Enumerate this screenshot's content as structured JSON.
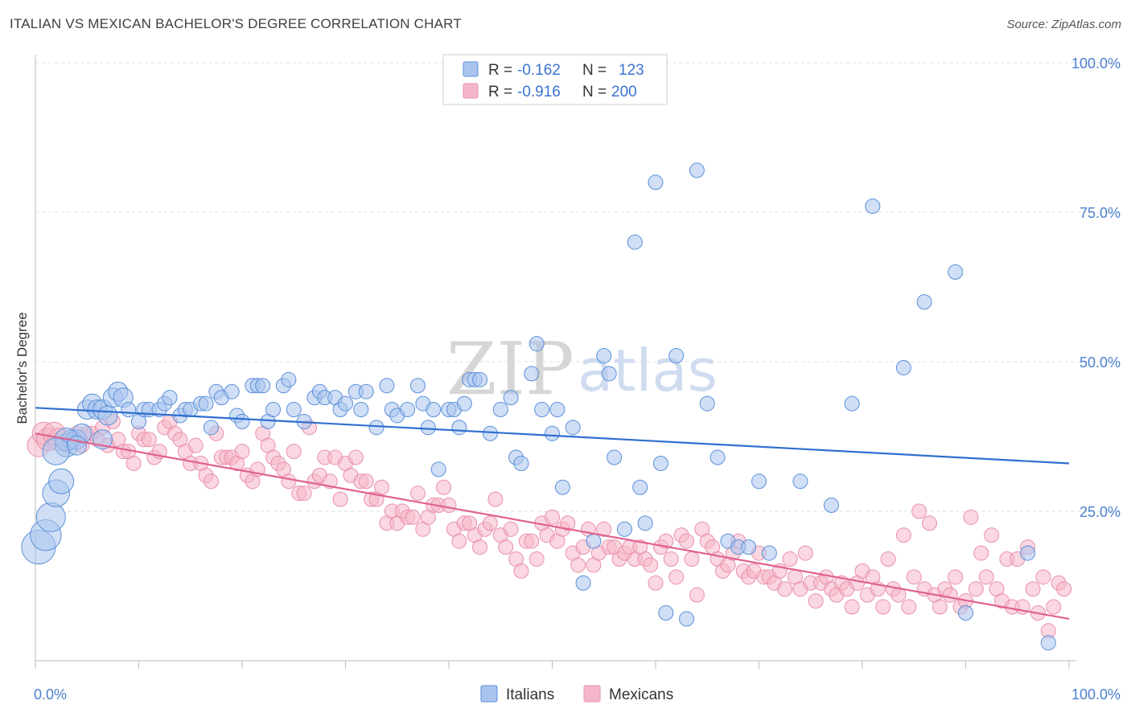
{
  "title": "ITALIAN VS MEXICAN BACHELOR'S DEGREE CORRELATION CHART",
  "source": "Source: ZipAtlas.com",
  "watermark": {
    "zip": "ZIP",
    "atlas": "atlas"
  },
  "colors": {
    "italians_fill": "#a9c5ee",
    "italians_stroke": "#5b8fd8",
    "italians_line": "#2f6fd0",
    "mexicans_fill": "#f6b6c9",
    "mexicans_stroke": "#e890ab",
    "mexicans_line": "#e0628e",
    "grid": "#dddddd",
    "axis_text": "#4a7fd0"
  },
  "legend": {
    "rows": [
      {
        "r_label": "R =",
        "r_value": "-0.162",
        "n_label": "N =",
        "n_value": "123"
      },
      {
        "r_label": "R =",
        "r_value": "-0.916",
        "n_label": "N =",
        "n_value": "200"
      }
    ]
  },
  "bottom_legend": [
    "Italians",
    "Mexicans"
  ],
  "chart_data": {
    "type": "scatter",
    "title": "ITALIAN VS MEXICAN BACHELOR'S DEGREE CORRELATION CHART",
    "xlabel": "",
    "ylabel": "Bachelor's Degree",
    "x_ticks": [
      "0.0%",
      "100.0%"
    ],
    "y_ticks": [
      "100.0%",
      "75.0%",
      "50.0%",
      "25.0%"
    ],
    "xlim": [
      0,
      100
    ],
    "ylim": [
      0,
      102
    ],
    "grid": "horizontal dashed",
    "legend_position": "top-center",
    "series": [
      {
        "name": "Italians",
        "trend": {
          "x": [
            0,
            100
          ],
          "y": [
            42.3,
            33.0
          ]
        },
        "points": [
          [
            0.3,
            19
          ],
          [
            1,
            21
          ],
          [
            1.5,
            24
          ],
          [
            2,
            28
          ],
          [
            2.5,
            30
          ],
          [
            3,
            36
          ],
          [
            3.5,
            37
          ],
          [
            4,
            37
          ],
          [
            4.5,
            38
          ],
          [
            5,
            42
          ],
          [
            5.5,
            43
          ],
          [
            6,
            42
          ],
          [
            6.5,
            42
          ],
          [
            7,
            41
          ],
          [
            7.5,
            44
          ],
          [
            8,
            45
          ],
          [
            8.5,
            44
          ],
          [
            9,
            42
          ],
          [
            10,
            40
          ],
          [
            10.5,
            42
          ],
          [
            11,
            42
          ],
          [
            12,
            42
          ],
          [
            12.5,
            43
          ],
          [
            13,
            44
          ],
          [
            14,
            41
          ],
          [
            14.5,
            42
          ],
          [
            15,
            42
          ],
          [
            16,
            43
          ],
          [
            16.5,
            43
          ],
          [
            17,
            39
          ],
          [
            17.5,
            45
          ],
          [
            18,
            44
          ],
          [
            19,
            45
          ],
          [
            19.5,
            41
          ],
          [
            20,
            40
          ],
          [
            21,
            46
          ],
          [
            21.5,
            46
          ],
          [
            22,
            46
          ],
          [
            22.5,
            40
          ],
          [
            23,
            42
          ],
          [
            24,
            46
          ],
          [
            24.5,
            47
          ],
          [
            25,
            42
          ],
          [
            26,
            40
          ],
          [
            27,
            44
          ],
          [
            27.5,
            45
          ],
          [
            28,
            44
          ],
          [
            29,
            44
          ],
          [
            29.5,
            42
          ],
          [
            30,
            43
          ],
          [
            31,
            45
          ],
          [
            31.5,
            42
          ],
          [
            32,
            45
          ],
          [
            33,
            39
          ],
          [
            34,
            46
          ],
          [
            34.5,
            42
          ],
          [
            35,
            41
          ],
          [
            36,
            42
          ],
          [
            37,
            46
          ],
          [
            37.5,
            43
          ],
          [
            38,
            39
          ],
          [
            38.5,
            42
          ],
          [
            39,
            32
          ],
          [
            40,
            42
          ],
          [
            40.5,
            42
          ],
          [
            41,
            39
          ],
          [
            41.5,
            43
          ],
          [
            42,
            47
          ],
          [
            42.5,
            47
          ],
          [
            43,
            47
          ],
          [
            44,
            38
          ],
          [
            45,
            42
          ],
          [
            46,
            44
          ],
          [
            46.5,
            34
          ],
          [
            47,
            33
          ],
          [
            48,
            48
          ],
          [
            48.5,
            53
          ],
          [
            49,
            42
          ],
          [
            50,
            38
          ],
          [
            50.5,
            42
          ],
          [
            51,
            29
          ],
          [
            52,
            39
          ],
          [
            53,
            13
          ],
          [
            54,
            20
          ],
          [
            55,
            51
          ],
          [
            55.5,
            48
          ],
          [
            56,
            34
          ],
          [
            57,
            22
          ],
          [
            58,
            70
          ],
          [
            58.5,
            29
          ],
          [
            59,
            23
          ],
          [
            60,
            80
          ],
          [
            60.5,
            33
          ],
          [
            61,
            8
          ],
          [
            62,
            51
          ],
          [
            63,
            7
          ],
          [
            64,
            82
          ],
          [
            65,
            43
          ],
          [
            66,
            34
          ],
          [
            67,
            20
          ],
          [
            68,
            19
          ],
          [
            69,
            19
          ],
          [
            70,
            30
          ],
          [
            71,
            18
          ],
          [
            74,
            30
          ],
          [
            77,
            26
          ],
          [
            79,
            43
          ],
          [
            81,
            76
          ],
          [
            84,
            49
          ],
          [
            86,
            60
          ],
          [
            89,
            65
          ],
          [
            90,
            8
          ],
          [
            96,
            18
          ],
          [
            98,
            3
          ],
          [
            6.5,
            37
          ],
          [
            3,
            37
          ],
          [
            2,
            35
          ],
          [
            4,
            36
          ]
        ]
      },
      {
        "name": "Mexicans",
        "trend": {
          "x": [
            0,
            100
          ],
          "y": [
            38.0,
            7.0
          ]
        },
        "points": [
          [
            0.3,
            36
          ],
          [
            0.8,
            38
          ],
          [
            1.2,
            37
          ],
          [
            1.8,
            38
          ],
          [
            2.3,
            37
          ],
          [
            3,
            36
          ],
          [
            3.5,
            37
          ],
          [
            4,
            38
          ],
          [
            4.5,
            36
          ],
          [
            5,
            38
          ],
          [
            5.5,
            38
          ],
          [
            6,
            37
          ],
          [
            6.5,
            39
          ],
          [
            7,
            36
          ],
          [
            7.5,
            40
          ],
          [
            8,
            37
          ],
          [
            8.5,
            35
          ],
          [
            9,
            35
          ],
          [
            9.5,
            33
          ],
          [
            10,
            38
          ],
          [
            10.5,
            37
          ],
          [
            11,
            37
          ],
          [
            11.5,
            34
          ],
          [
            12,
            35
          ],
          [
            12.5,
            39
          ],
          [
            13,
            40
          ],
          [
            13.5,
            38
          ],
          [
            14,
            37
          ],
          [
            14.5,
            35
          ],
          [
            15,
            33
          ],
          [
            15.5,
            36
          ],
          [
            16,
            33
          ],
          [
            16.5,
            31
          ],
          [
            17,
            30
          ],
          [
            17.5,
            38
          ],
          [
            18,
            34
          ],
          [
            18.5,
            34
          ],
          [
            19,
            34
          ],
          [
            19.5,
            33
          ],
          [
            20,
            35
          ],
          [
            20.5,
            31
          ],
          [
            21,
            30
          ],
          [
            21.5,
            32
          ],
          [
            22,
            38
          ],
          [
            22.5,
            36
          ],
          [
            23,
            34
          ],
          [
            23.5,
            33
          ],
          [
            24,
            32
          ],
          [
            24.5,
            30
          ],
          [
            25,
            35
          ],
          [
            25.5,
            28
          ],
          [
            26,
            28
          ],
          [
            26.5,
            39
          ],
          [
            27,
            30
          ],
          [
            27.5,
            31
          ],
          [
            28,
            34
          ],
          [
            28.5,
            30
          ],
          [
            29,
            34
          ],
          [
            29.5,
            27
          ],
          [
            30,
            33
          ],
          [
            30.5,
            31
          ],
          [
            31,
            34
          ],
          [
            31.5,
            30
          ],
          [
            32,
            30
          ],
          [
            32.5,
            27
          ],
          [
            33,
            27
          ],
          [
            33.5,
            29
          ],
          [
            34,
            23
          ],
          [
            34.5,
            25
          ],
          [
            35,
            23
          ],
          [
            35.5,
            25
          ],
          [
            36,
            24
          ],
          [
            36.5,
            24
          ],
          [
            37,
            28
          ],
          [
            37.5,
            22
          ],
          [
            38,
            24
          ],
          [
            38.5,
            26
          ],
          [
            39,
            26
          ],
          [
            39.5,
            29
          ],
          [
            40,
            26
          ],
          [
            40.5,
            22
          ],
          [
            41,
            20
          ],
          [
            41.5,
            23
          ],
          [
            42,
            23
          ],
          [
            42.5,
            21
          ],
          [
            43,
            19
          ],
          [
            43.5,
            22
          ],
          [
            44,
            23
          ],
          [
            44.5,
            27
          ],
          [
            45,
            21
          ],
          [
            45.5,
            19
          ],
          [
            46,
            22
          ],
          [
            46.5,
            17
          ],
          [
            47,
            15
          ],
          [
            47.5,
            20
          ],
          [
            48,
            20
          ],
          [
            48.5,
            17
          ],
          [
            49,
            23
          ],
          [
            49.5,
            21
          ],
          [
            50,
            24
          ],
          [
            50.5,
            20
          ],
          [
            51,
            22
          ],
          [
            51.5,
            23
          ],
          [
            52,
            18
          ],
          [
            52.5,
            16
          ],
          [
            53,
            19
          ],
          [
            53.5,
            22
          ],
          [
            54,
            16
          ],
          [
            54.5,
            18
          ],
          [
            55,
            22
          ],
          [
            55.5,
            19
          ],
          [
            56,
            19
          ],
          [
            56.5,
            17
          ],
          [
            57,
            18
          ],
          [
            57.5,
            19
          ],
          [
            58,
            17
          ],
          [
            58.5,
            19
          ],
          [
            59,
            17
          ],
          [
            59.5,
            16
          ],
          [
            60,
            13
          ],
          [
            60.5,
            19
          ],
          [
            61,
            20
          ],
          [
            61.5,
            17
          ],
          [
            62,
            14
          ],
          [
            62.5,
            21
          ],
          [
            63,
            20
          ],
          [
            63.5,
            17
          ],
          [
            64,
            11
          ],
          [
            64.5,
            22
          ],
          [
            65,
            20
          ],
          [
            65.5,
            19
          ],
          [
            66,
            17
          ],
          [
            66.5,
            15
          ],
          [
            67,
            16
          ],
          [
            67.5,
            18
          ],
          [
            68,
            20
          ],
          [
            68.5,
            15
          ],
          [
            69,
            14
          ],
          [
            69.5,
            15
          ],
          [
            70,
            18
          ],
          [
            70.5,
            14
          ],
          [
            71,
            14
          ],
          [
            71.5,
            13
          ],
          [
            72,
            15
          ],
          [
            72.5,
            12
          ],
          [
            73,
            17
          ],
          [
            73.5,
            14
          ],
          [
            74,
            12
          ],
          [
            74.5,
            18
          ],
          [
            75,
            13
          ],
          [
            75.5,
            10
          ],
          [
            76,
            13
          ],
          [
            76.5,
            14
          ],
          [
            77,
            12
          ],
          [
            77.5,
            11
          ],
          [
            78,
            13
          ],
          [
            78.5,
            12
          ],
          [
            79,
            9
          ],
          [
            79.5,
            13
          ],
          [
            80,
            15
          ],
          [
            80.5,
            11
          ],
          [
            81,
            14
          ],
          [
            81.5,
            12
          ],
          [
            82,
            9
          ],
          [
            82.5,
            17
          ],
          [
            83,
            12
          ],
          [
            83.5,
            11
          ],
          [
            84,
            21
          ],
          [
            84.5,
            9
          ],
          [
            85,
            14
          ],
          [
            85.5,
            25
          ],
          [
            86,
            12
          ],
          [
            86.5,
            23
          ],
          [
            87,
            11
          ],
          [
            87.5,
            9
          ],
          [
            88,
            12
          ],
          [
            88.5,
            11
          ],
          [
            89,
            14
          ],
          [
            89.5,
            9
          ],
          [
            90,
            10
          ],
          [
            90.5,
            24
          ],
          [
            91,
            12
          ],
          [
            91.5,
            18
          ],
          [
            92,
            14
          ],
          [
            92.5,
            21
          ],
          [
            93,
            12
          ],
          [
            93.5,
            10
          ],
          [
            94,
            17
          ],
          [
            94.5,
            9
          ],
          [
            95,
            17
          ],
          [
            95.5,
            9
          ],
          [
            96,
            19
          ],
          [
            96.5,
            12
          ],
          [
            97,
            8
          ],
          [
            97.5,
            14
          ],
          [
            98,
            5
          ],
          [
            98.5,
            9
          ],
          [
            99,
            13
          ],
          [
            99.5,
            12
          ]
        ]
      }
    ]
  }
}
